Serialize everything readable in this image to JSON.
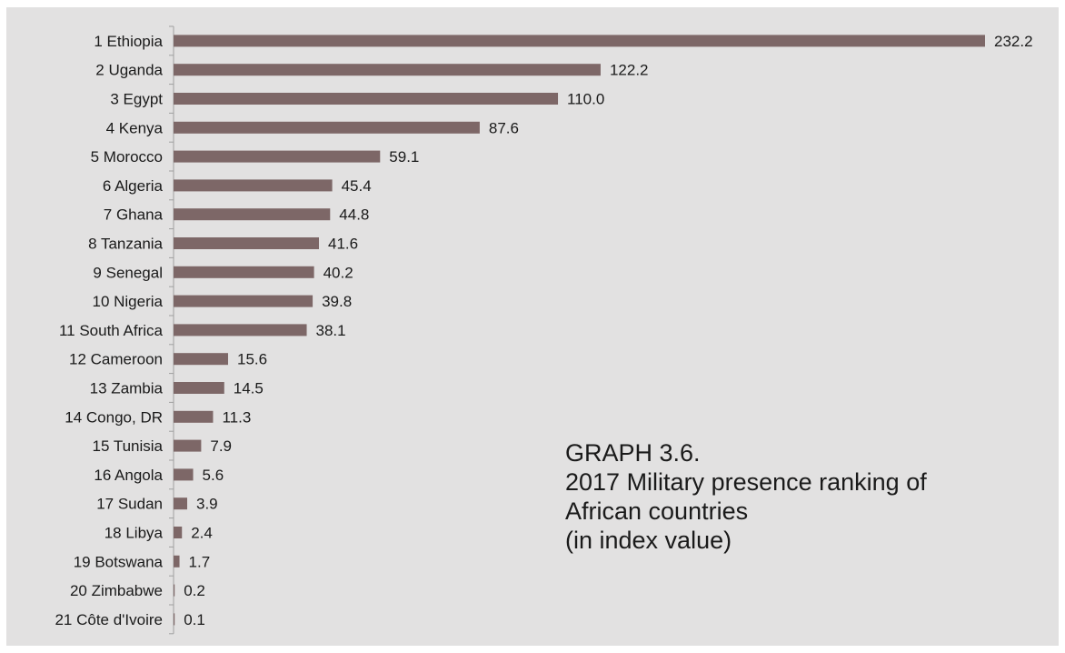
{
  "chart_data": {
    "type": "bar",
    "orientation": "horizontal",
    "categories": [
      "1 Ethiopia",
      "2 Uganda",
      "3 Egypt",
      "4 Kenya",
      "5 Morocco",
      "6 Algeria",
      "7 Ghana",
      "8 Tanzania",
      "9 Senegal",
      "10 Nigeria",
      "11 South Africa",
      "12 Cameroon",
      "13 Zambia",
      "14 Congo, DR",
      "15 Tunisia",
      "16 Angola",
      "17 Sudan",
      "18 Libya",
      "19 Botswana",
      "20 Zimbabwe",
      "21 Côte d'Ivoire"
    ],
    "values": [
      232.2,
      122.2,
      110.0,
      87.6,
      59.1,
      45.4,
      44.8,
      41.6,
      40.2,
      39.8,
      38.1,
      15.6,
      14.5,
      11.3,
      7.9,
      5.6,
      3.9,
      2.4,
      1.7,
      0.2,
      0.1
    ],
    "value_labels": [
      "232.2",
      "122.2",
      "110.0",
      "87.6",
      "59.1",
      "45.4",
      "44.8",
      "41.6",
      "40.2",
      "39.8",
      "38.1",
      "15.6",
      "14.5",
      "11.3",
      "7.9",
      "5.6",
      "3.9",
      "2.4",
      "1.7",
      "0.2",
      "0.1"
    ],
    "title_lines": [
      "GRAPH 3.6.",
      "2017 Military presence ranking of",
      "African countries",
      "(in index value)"
    ],
    "xlim": [
      0,
      232.2
    ],
    "grid": false,
    "legend": "none",
    "colors": {
      "bar": "#7d6767",
      "background": "#e2e1e1",
      "axis": "#a0a0a0",
      "text": "#1a1a1a"
    }
  }
}
